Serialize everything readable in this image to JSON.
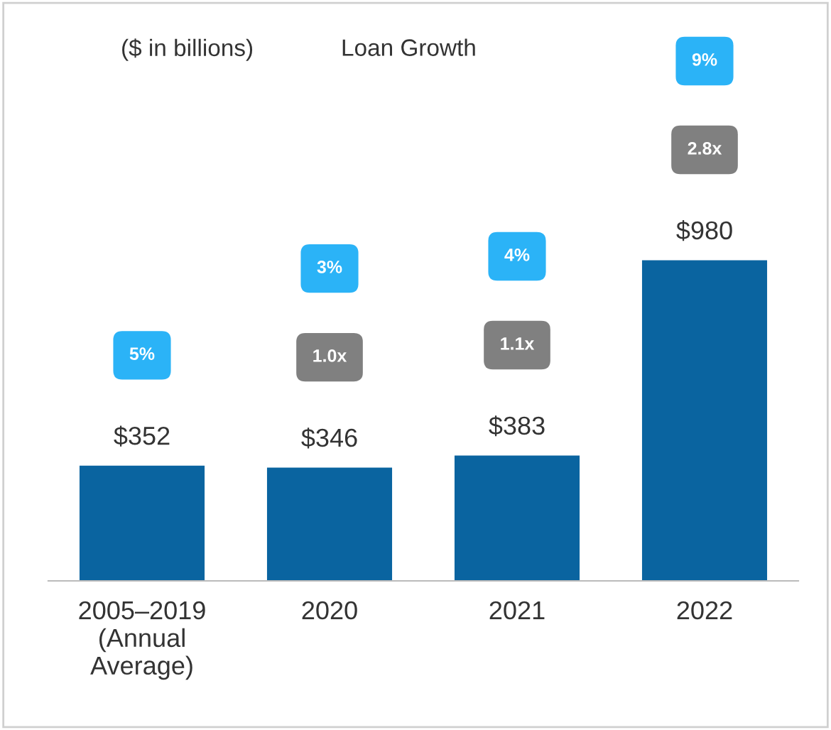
{
  "chart_data": {
    "type": "bar",
    "title": "Loan Growth",
    "subtitle": "($ in billions)",
    "categories": [
      "2005–2019\n(Annual\nAverage)",
      "2020",
      "2021",
      "2022"
    ],
    "values": [
      352,
      346,
      383,
      980
    ],
    "color": "#0a64a0",
    "value_labels": [
      "$352",
      "$346",
      "$383",
      "$980"
    ],
    "tick_labels": "x",
    "grid": false,
    "legend": false,
    "annotations": [
      "5%",
      "3%",
      "1.0x",
      "4%",
      "1.1x",
      "9%",
      "2.8x"
    ]
  }
}
